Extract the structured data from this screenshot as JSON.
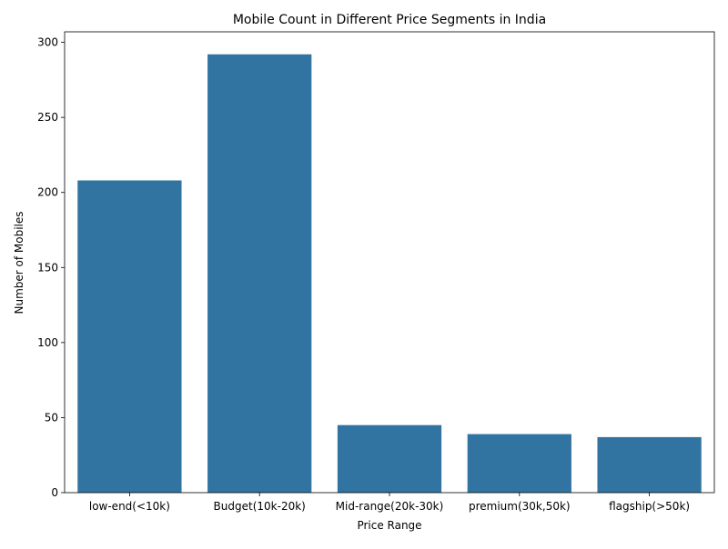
{
  "chart_data": {
    "type": "bar",
    "title": "Mobile Count in Different Price Segments in India",
    "xlabel": "Price Range",
    "ylabel": "Number of Mobiles",
    "categories": [
      "low-end(<10k)",
      "Budget(10k-20k)",
      "Mid-range(20k-30k)",
      "premium(30k,50k)",
      "flagship(>50k)"
    ],
    "values": [
      208,
      292,
      45,
      39,
      37
    ],
    "ylim": [
      0,
      307
    ],
    "yticks": [
      0,
      50,
      100,
      150,
      200,
      250,
      300
    ],
    "bar_color": "#3274a1",
    "grid": false,
    "legend": "none"
  }
}
